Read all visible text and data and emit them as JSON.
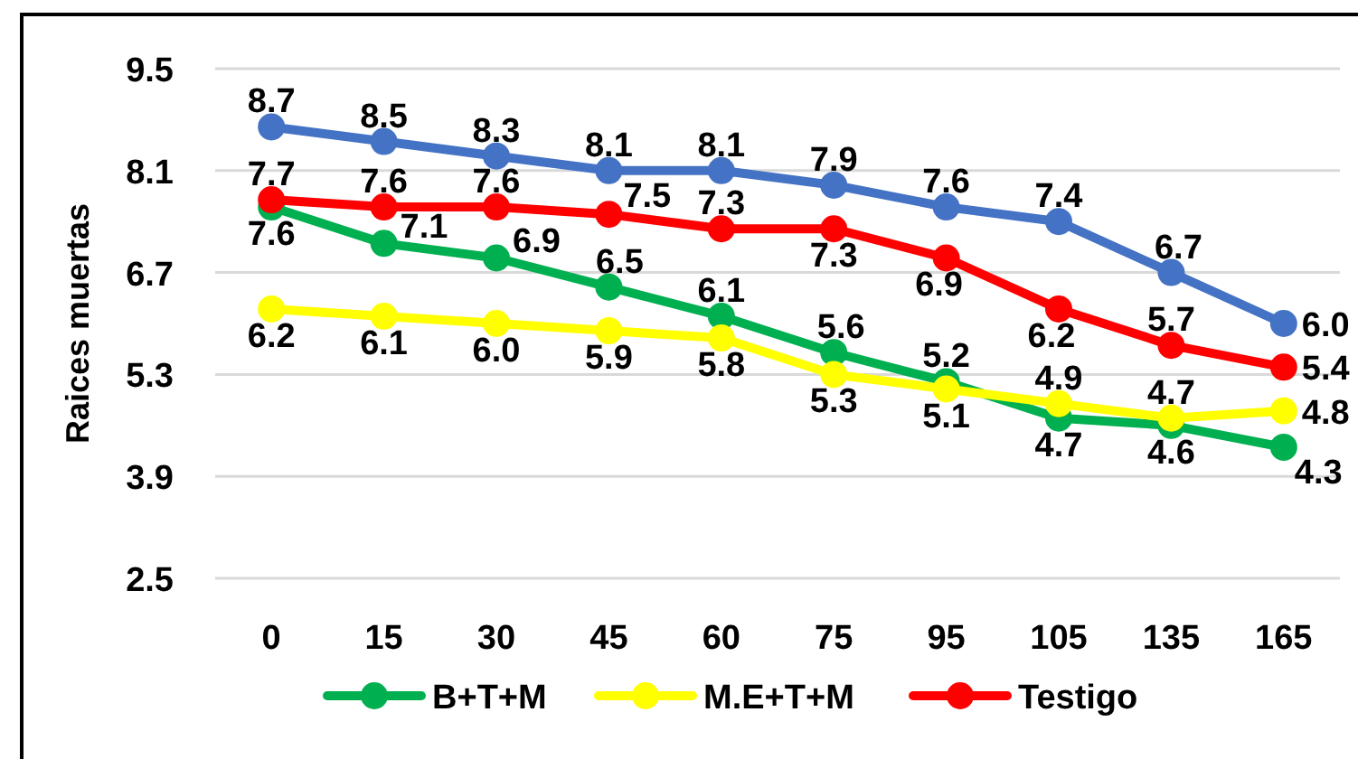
{
  "chart_data": {
    "type": "line",
    "ylabel": "Raices muertas",
    "categories": [
      "0",
      "15",
      "30",
      "45",
      "60",
      "75",
      "95",
      "105",
      "135",
      "165"
    ],
    "series": [
      {
        "color": "#4472c4",
        "values": [
          8.7,
          8.5,
          8.3,
          8.1,
          8.1,
          7.9,
          7.6,
          7.4,
          6.7,
          6.0
        ],
        "value_labels": [
          "8.7",
          "8.5",
          "8.3",
          "8.1",
          "8.1",
          "7.9",
          "7.6",
          "7.4",
          "6.7",
          "6.0"
        ]
      },
      {
        "name": "B+T+M",
        "color": "#00b050",
        "values": [
          7.6,
          7.1,
          6.9,
          6.5,
          6.1,
          5.6,
          5.2,
          4.7,
          4.6,
          4.3
        ],
        "value_labels": [
          "7.6",
          "7.1",
          "6.9",
          "6.5",
          "6.1",
          "5.6",
          "5.2",
          "4.7",
          "4.6",
          "4.3"
        ]
      },
      {
        "name": "M.E+T+M",
        "color": "#ffff00",
        "values": [
          6.2,
          6.1,
          6.0,
          5.9,
          5.8,
          5.3,
          5.1,
          4.9,
          4.7,
          4.8
        ],
        "value_labels": [
          "6.2",
          "6.1",
          "6.0",
          "5.9",
          "5.8",
          "5.3",
          "5.1",
          "4.9",
          "4.7",
          "4.8"
        ]
      },
      {
        "name": "Testigo",
        "color": "#ff0000",
        "values": [
          7.7,
          7.6,
          7.6,
          7.5,
          7.3,
          7.3,
          6.9,
          6.2,
          5.7,
          5.4
        ],
        "value_labels": [
          "7.7",
          "7.6",
          "7.6",
          "7.5",
          "7.3",
          "7.3",
          "6.9",
          "6.2",
          "5.7",
          "5.4"
        ]
      }
    ],
    "ylim": [
      2.5,
      9.5
    ],
    "yticks": [
      2.5,
      3.9,
      5.3,
      6.7,
      8.1,
      9.5
    ],
    "grid": "y",
    "legend": "bottom",
    "marker": "circle"
  }
}
